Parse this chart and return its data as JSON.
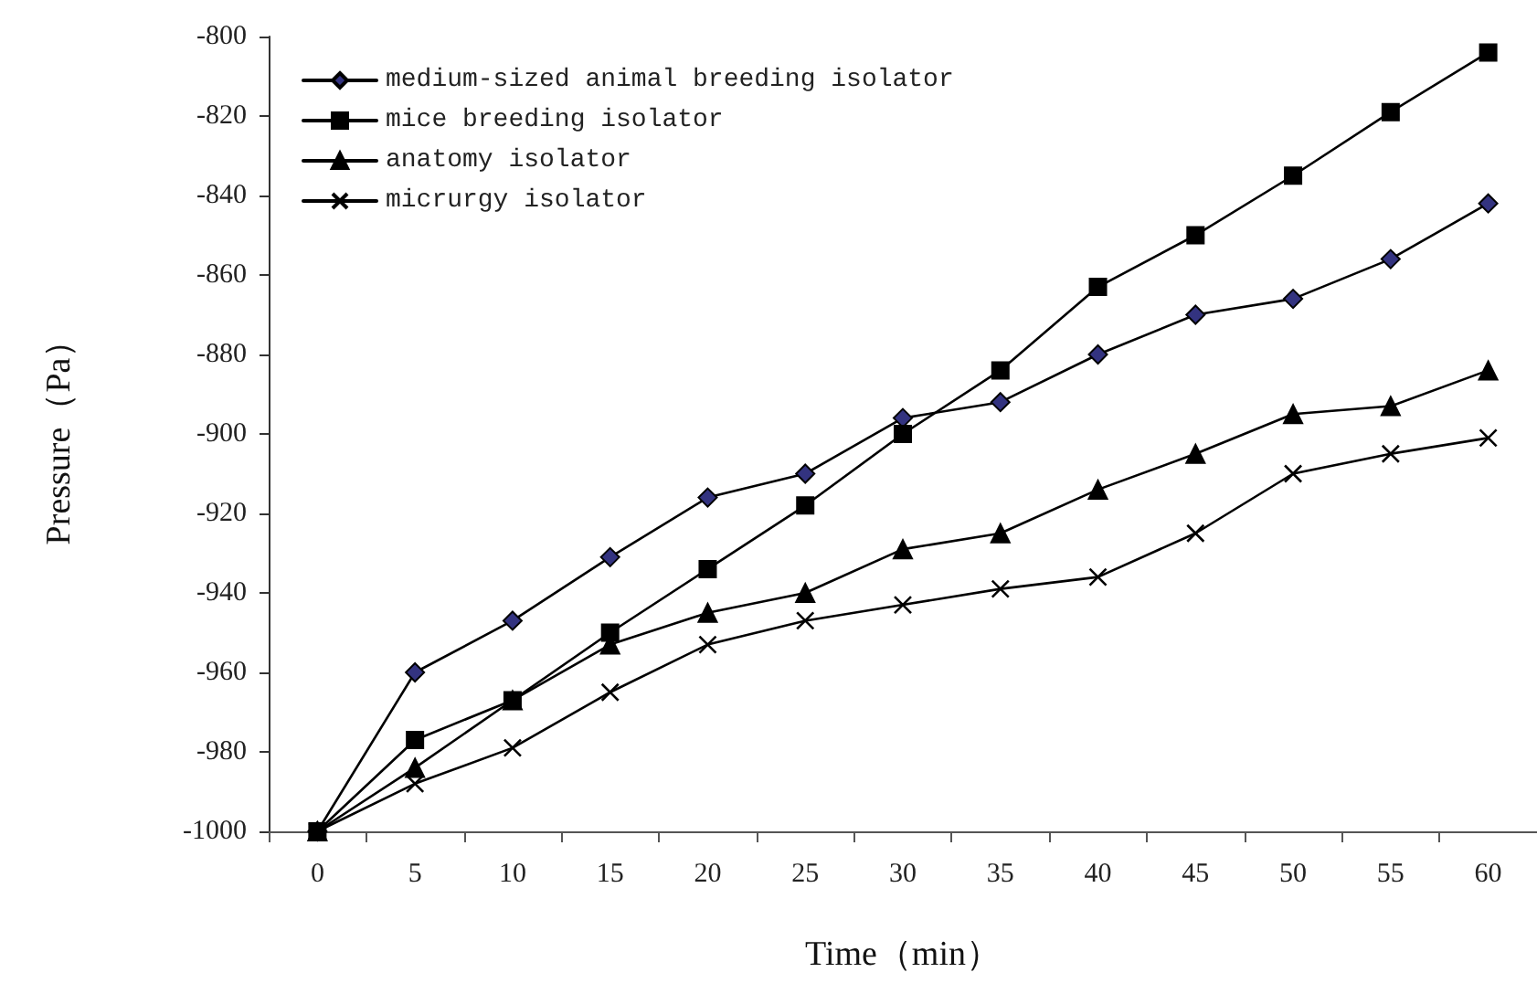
{
  "chart_data": {
    "type": "line",
    "xlabel": "Time（min）",
    "ylabel": "Pressure（Pa）",
    "categories": [
      "0",
      "5",
      "10",
      "15",
      "20",
      "25",
      "30",
      "35",
      "40",
      "45",
      "50",
      "55",
      "60"
    ],
    "series": [
      {
        "name": "medium-sized animal breeding isolator",
        "color": "#333380",
        "marker": "diamond",
        "values": [
          -1000,
          -960,
          -947,
          -931,
          -916,
          -910,
          -896,
          -892,
          -880,
          -870,
          -866,
          -856,
          -842
        ]
      },
      {
        "name": "mice breeding isolator",
        "color": "#000000",
        "marker": "square",
        "values": [
          -1000,
          -977,
          -967,
          -950,
          -934,
          -918,
          -900,
          -884,
          -863,
          -850,
          -835,
          -819,
          -804
        ]
      },
      {
        "name": "anatomy isolator",
        "color": "#000000",
        "marker": "triangle",
        "values": [
          -1000,
          -984,
          -967,
          -953,
          -945,
          -940,
          -929,
          -925,
          -914,
          -905,
          -895,
          -893,
          -884
        ]
      },
      {
        "name": "micrurgy isolator",
        "color": "#000000",
        "marker": "cross",
        "values": [
          -1000,
          -988,
          -979,
          -965,
          -953,
          -947,
          -943,
          -939,
          -936,
          -925,
          -910,
          -905,
          -901
        ]
      }
    ],
    "ylim": [
      -1000,
      -800
    ],
    "yticks": [
      -1000,
      -980,
      -960,
      -940,
      -920,
      -900,
      -880,
      -860,
      -840,
      -820,
      -800
    ],
    "grid": false,
    "legend": "top left",
    "line_style": "solid"
  }
}
